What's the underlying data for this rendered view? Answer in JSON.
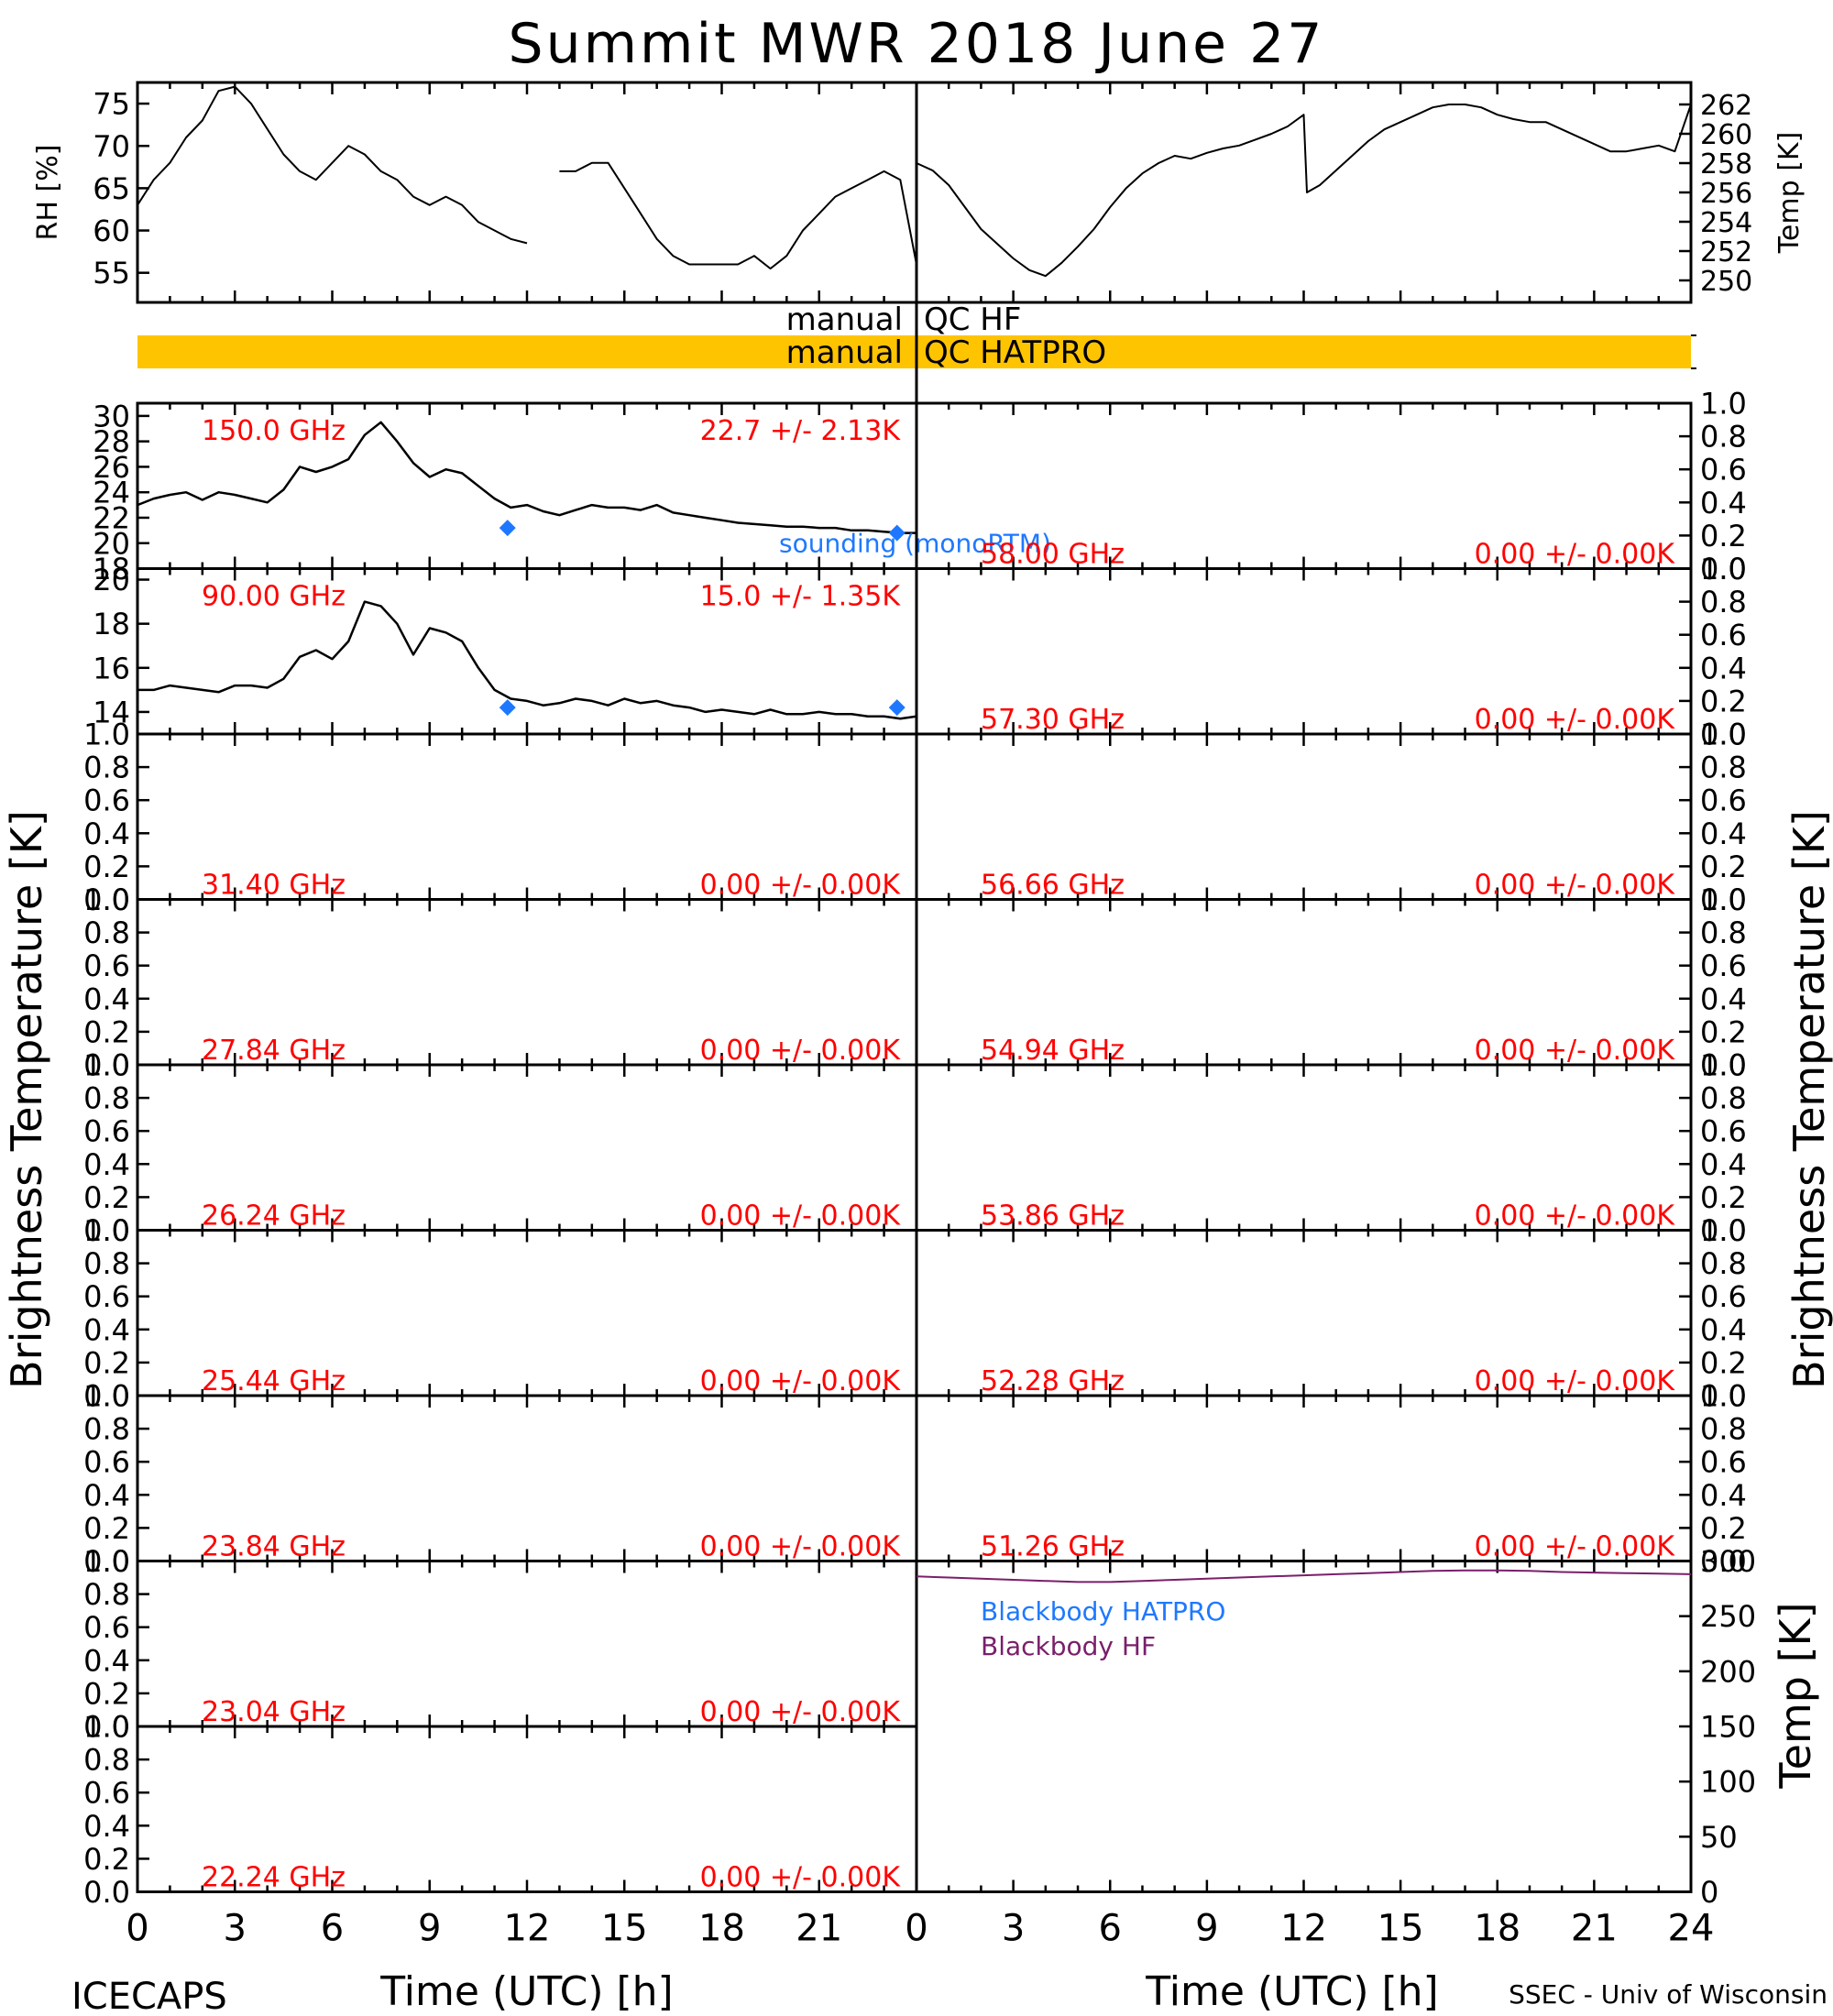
{
  "title": "Summit MWR 2018 June 27",
  "footer": {
    "left": "ICECAPS",
    "right": "SSEC - Univ of Wisconsin"
  },
  "x_axis": {
    "label": "Time (UTC) [h]",
    "range": [
      0,
      24
    ],
    "ticks_left": [
      "0",
      "3",
      "6",
      "9",
      "12",
      "15",
      "18",
      "21"
    ],
    "ticks_right": [
      "0",
      "3",
      "6",
      "9",
      "12",
      "15",
      "18",
      "21",
      "24"
    ]
  },
  "left_ylabel": "Brightness Temperature [K]",
  "right_ylabel": "Brightness Temperature [K]",
  "colors": {
    "data": "#000000",
    "annotation": "#ff0000",
    "sounding": "#1e78ff",
    "qc_bar": "#ffc400",
    "blackbody_hf": "#7a1f6b",
    "blackbody_hatpro": "#1e78ff"
  },
  "qc": {
    "label_hf_left": "manual",
    "label_hf_right": "QC HF",
    "label_hatpro_left": "manual",
    "label_hatpro_right": "QC HATPRO"
  },
  "chart_data": [
    {
      "type": "line",
      "panel": "met-rh",
      "ylabel": "RH [%]",
      "ylim": [
        51.5,
        77.5
      ],
      "yticks": [
        "55",
        "60",
        "65",
        "70",
        "75"
      ],
      "x": [
        0,
        0.5,
        1,
        1.5,
        2,
        2.5,
        3,
        3.5,
        4,
        4.5,
        5,
        5.5,
        6,
        6.5,
        7,
        7.5,
        8,
        8.5,
        9,
        9.5,
        10,
        10.5,
        11,
        11.5,
        12,
        12.2,
        13,
        13.5,
        14,
        14.5,
        15,
        15.5,
        16,
        16.5,
        17,
        17.5,
        18,
        18.5,
        19,
        19.5,
        20,
        20.5,
        21,
        21.5,
        22,
        22.5,
        23,
        23.5,
        24
      ],
      "values": [
        63,
        66,
        68,
        71,
        73,
        76.5,
        77,
        75,
        72,
        69,
        67,
        66,
        68,
        70,
        69,
        67,
        66,
        64,
        63,
        64,
        63,
        61,
        60,
        59,
        58.5,
        null,
        67,
        67,
        68,
        68,
        65,
        62,
        59,
        57,
        56,
        56,
        56,
        56,
        57,
        55.5,
        57,
        60,
        62,
        64,
        65,
        66,
        67,
        66,
        56
      ]
    },
    {
      "type": "line",
      "panel": "met-temp",
      "ylabel": "Temp [K]",
      "ylim": [
        248.5,
        263.5
      ],
      "yticks": [
        "250",
        "252",
        "254",
        "256",
        "258",
        "260",
        "262"
      ],
      "x": [
        0,
        0.5,
        1,
        1.5,
        2,
        2.5,
        3,
        3.5,
        4,
        4.5,
        5,
        5.5,
        6,
        6.5,
        7,
        7.5,
        8,
        8.5,
        9,
        9.5,
        10,
        10.5,
        11,
        11.5,
        12,
        12.1,
        12.5,
        13,
        13.5,
        14,
        14.5,
        15,
        15.5,
        16,
        16.5,
        17,
        17.5,
        18,
        18.5,
        19,
        19.5,
        20,
        20.5,
        21,
        21.5,
        22,
        22.5,
        23,
        23.5,
        24
      ],
      "values": [
        258,
        257.5,
        256.5,
        255,
        253.5,
        252.5,
        251.5,
        250.7,
        250.3,
        251.2,
        252.3,
        253.5,
        255,
        256.3,
        257.3,
        258,
        258.5,
        258.3,
        258.7,
        259,
        259.2,
        259.6,
        260,
        260.5,
        261.3,
        256,
        256.5,
        257.5,
        258.5,
        259.5,
        260.3,
        260.8,
        261.3,
        261.8,
        262,
        262,
        261.8,
        261.3,
        261,
        260.8,
        260.8,
        260.3,
        259.8,
        259.3,
        258.8,
        258.8,
        259,
        259.2,
        258.8,
        262
      ]
    },
    {
      "type": "line",
      "panel": "tb-150.0",
      "channel": "150.0 GHz",
      "stats": "22.7 +/-  2.13K",
      "ylim": [
        18,
        31
      ],
      "yticks": [
        "18",
        "20",
        "22",
        "24",
        "26",
        "28",
        "30"
      ],
      "x": [
        0,
        0.5,
        1,
        1.5,
        2,
        2.5,
        3,
        3.5,
        4,
        4.5,
        5,
        5.5,
        6,
        6.5,
        7,
        7.5,
        8,
        8.5,
        9,
        9.5,
        10,
        10.5,
        11,
        11.5,
        12,
        12.5,
        13,
        13.5,
        14,
        14.5,
        15,
        15.5,
        16,
        16.5,
        17,
        17.5,
        18,
        18.5,
        19,
        19.5,
        20,
        20.5,
        21,
        21.5,
        22,
        22.5,
        23,
        23.5,
        24
      ],
      "values": [
        23,
        23.5,
        23.8,
        24,
        23.4,
        24,
        23.8,
        23.5,
        23.2,
        24.2,
        26,
        25.6,
        26,
        26.6,
        28.5,
        29.5,
        28,
        26.3,
        25.2,
        25.8,
        25.5,
        24.5,
        23.5,
        22.8,
        23,
        22.5,
        22.2,
        22.6,
        23,
        22.8,
        22.8,
        22.6,
        23,
        22.4,
        22.2,
        22,
        21.8,
        21.6,
        21.5,
        21.4,
        21.3,
        21.3,
        21.2,
        21.2,
        21,
        21,
        20.9,
        20.8,
        20.8
      ],
      "sounding": {
        "x": [
          11.4,
          23.4
        ],
        "values": [
          21.2,
          20.8
        ],
        "label": "sounding (monoRTM)"
      }
    },
    {
      "type": "line",
      "panel": "tb-90.00",
      "channel": "90.00 GHz",
      "stats": "15.0 +/-  1.35K",
      "ylim": [
        13,
        20.5
      ],
      "yticks": [
        "14",
        "16",
        "18",
        "20"
      ],
      "x": [
        0,
        0.5,
        1,
        1.5,
        2,
        2.5,
        3,
        3.5,
        4,
        4.5,
        5,
        5.5,
        6,
        6.5,
        7,
        7.5,
        8,
        8.5,
        9,
        9.5,
        10,
        10.5,
        11,
        11.5,
        12,
        12.5,
        13,
        13.5,
        14,
        14.5,
        15,
        15.5,
        16,
        16.5,
        17,
        17.5,
        18,
        18.5,
        19,
        19.5,
        20,
        20.5,
        21,
        21.5,
        22,
        22.5,
        23,
        23.5,
        24
      ],
      "values": [
        15,
        15,
        15.2,
        15.1,
        15,
        14.9,
        15.2,
        15.2,
        15.1,
        15.5,
        16.5,
        16.8,
        16.4,
        17.2,
        19,
        18.8,
        18,
        16.6,
        17.8,
        17.6,
        17.2,
        16,
        15,
        14.6,
        14.5,
        14.3,
        14.4,
        14.6,
        14.5,
        14.3,
        14.6,
        14.4,
        14.5,
        14.3,
        14.2,
        14,
        14.1,
        14,
        13.9,
        14.1,
        13.9,
        13.9,
        14,
        13.9,
        13.9,
        13.8,
        13.8,
        13.7,
        13.8
      ],
      "sounding": {
        "x": [
          11.4,
          23.4
        ],
        "values": [
          14.2,
          14.2
        ]
      }
    },
    {
      "type": "line",
      "panel": "tb-58.00",
      "channel": "58.00 GHz",
      "stats": "0.00 +/-  0.00K",
      "ylim": [
        0,
        1
      ],
      "yticks": [
        "0.0",
        "0.2",
        "0.4",
        "0.6",
        "0.8",
        "1.0"
      ],
      "values": []
    },
    {
      "type": "line",
      "panel": "tb-57.30",
      "channel": "57.30 GHz",
      "stats": "0.00 +/-  0.00K",
      "ylim": [
        0,
        1
      ],
      "yticks": [
        "0.0",
        "0.2",
        "0.4",
        "0.6",
        "0.8",
        "1.0"
      ],
      "values": []
    },
    {
      "type": "line",
      "panel": "tb-31.40",
      "channel": "31.40 GHz",
      "stats": "0.00 +/-  0.00K",
      "ylim": [
        0,
        1
      ],
      "yticks": [
        "0.0",
        "0.2",
        "0.4",
        "0.6",
        "0.8",
        "1.0"
      ],
      "values": []
    },
    {
      "type": "line",
      "panel": "tb-56.66",
      "channel": "56.66 GHz",
      "stats": "0.00 +/-  0.00K",
      "ylim": [
        0,
        1
      ],
      "yticks": [
        "0.0",
        "0.2",
        "0.4",
        "0.6",
        "0.8",
        "1.0"
      ],
      "values": []
    },
    {
      "type": "line",
      "panel": "tb-27.84",
      "channel": "27.84 GHz",
      "stats": "0.00 +/-  0.00K",
      "ylim": [
        0,
        1
      ],
      "yticks": [
        "0.0",
        "0.2",
        "0.4",
        "0.6",
        "0.8",
        "1.0"
      ],
      "values": []
    },
    {
      "type": "line",
      "panel": "tb-54.94",
      "channel": "54.94 GHz",
      "stats": "0.00 +/-  0.00K",
      "ylim": [
        0,
        1
      ],
      "yticks": [
        "0.0",
        "0.2",
        "0.4",
        "0.6",
        "0.8",
        "1.0"
      ],
      "values": []
    },
    {
      "type": "line",
      "panel": "tb-26.24",
      "channel": "26.24 GHz",
      "stats": "0.00 +/-  0.00K",
      "ylim": [
        0,
        1
      ],
      "yticks": [
        "0.0",
        "0.2",
        "0.4",
        "0.6",
        "0.8",
        "1.0"
      ],
      "values": []
    },
    {
      "type": "line",
      "panel": "tb-53.86",
      "channel": "53.86 GHz",
      "stats": "0.00 +/-  0.00K",
      "ylim": [
        0,
        1
      ],
      "yticks": [
        "0.0",
        "0.2",
        "0.4",
        "0.6",
        "0.8",
        "1.0"
      ],
      "values": []
    },
    {
      "type": "line",
      "panel": "tb-25.44",
      "channel": "25.44 GHz",
      "stats": "0.00 +/-  0.00K",
      "ylim": [
        0,
        1
      ],
      "yticks": [
        "0.0",
        "0.2",
        "0.4",
        "0.6",
        "0.8",
        "1.0"
      ],
      "values": []
    },
    {
      "type": "line",
      "panel": "tb-52.28",
      "channel": "52.28 GHz",
      "stats": "0.00 +/-  0.00K",
      "ylim": [
        0,
        1
      ],
      "yticks": [
        "0.0",
        "0.2",
        "0.4",
        "0.6",
        "0.8",
        "1.0"
      ],
      "values": []
    },
    {
      "type": "line",
      "panel": "tb-23.84",
      "channel": "23.84 GHz",
      "stats": "0.00 +/-  0.00K",
      "ylim": [
        0,
        1
      ],
      "yticks": [
        "0.0",
        "0.2",
        "0.4",
        "0.6",
        "0.8",
        "1.0"
      ],
      "values": []
    },
    {
      "type": "line",
      "panel": "tb-51.26",
      "channel": "51.26 GHz",
      "stats": "0.00 +/-  0.00K",
      "ylim": [
        0,
        1
      ],
      "yticks": [
        "0.0",
        "0.2",
        "0.4",
        "0.6",
        "0.8",
        "1.0"
      ],
      "values": []
    },
    {
      "type": "line",
      "panel": "tb-23.04",
      "channel": "23.04 GHz",
      "stats": "0.00 +/-  0.00K",
      "ylim": [
        0,
        1
      ],
      "yticks": [
        "0.0",
        "0.2",
        "0.4",
        "0.6",
        "0.8",
        "1.0"
      ],
      "values": []
    },
    {
      "type": "line",
      "panel": "tb-22.24",
      "channel": "22.24 GHz",
      "stats": "0.00 +/-  0.00K",
      "ylim": [
        0,
        1
      ],
      "yticks": [
        "0.0",
        "0.2",
        "0.4",
        "0.6",
        "0.8",
        "1.0"
      ],
      "values": []
    },
    {
      "type": "line",
      "panel": "blackbody",
      "ylabel": "Temp [K]",
      "ylim": [
        0,
        300
      ],
      "yticks": [
        "0",
        "50",
        "100",
        "150",
        "200",
        "250",
        "300"
      ],
      "series": [
        {
          "name": "Blackbody HATPRO",
          "x": [],
          "values": []
        },
        {
          "name": "Blackbody HF",
          "x": [
            0,
            1,
            2,
            3,
            4,
            5,
            6,
            7,
            8,
            9,
            10,
            11,
            12,
            13,
            14,
            15,
            16,
            17,
            18,
            19,
            20,
            21,
            22,
            23,
            24
          ],
          "values": [
            286,
            285,
            284,
            283,
            282,
            281,
            281,
            282,
            283,
            284,
            285,
            286,
            287,
            288,
            289,
            290,
            291,
            291.5,
            291.5,
            291,
            290,
            289.5,
            289,
            288.5,
            288
          ]
        }
      ]
    }
  ]
}
